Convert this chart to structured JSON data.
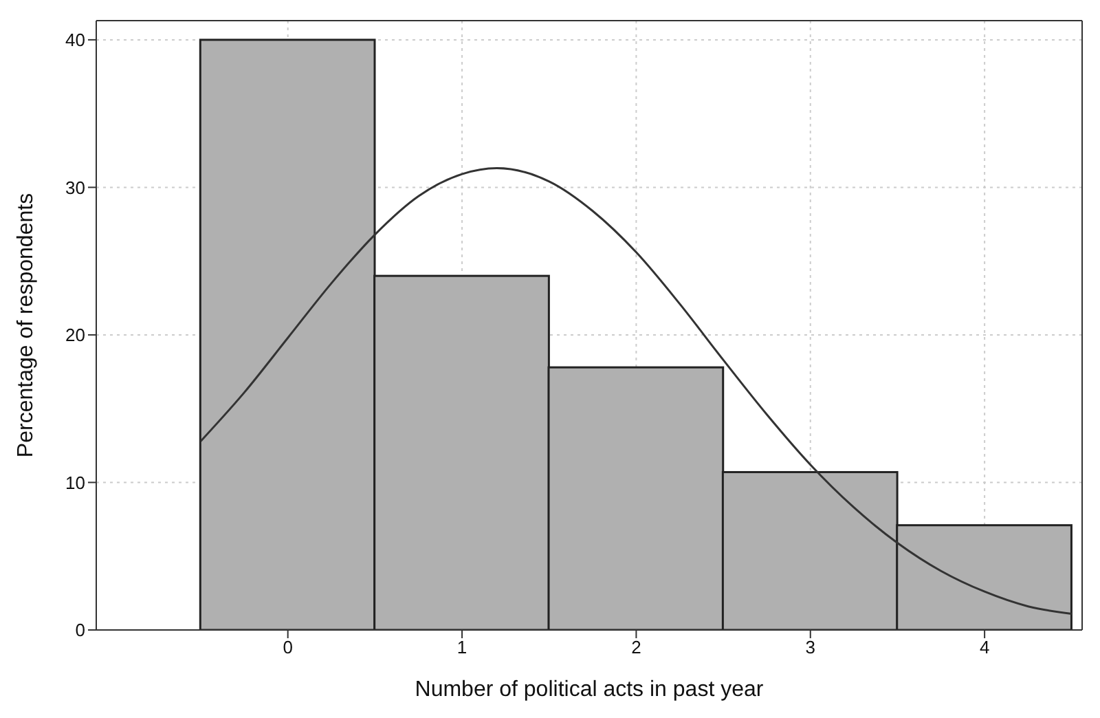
{
  "chart_data": {
    "type": "histogram",
    "xlabel": "Number of political acts in past year",
    "ylabel": "Percentage of respondents",
    "bins": [
      -0.5,
      0.5,
      1.5,
      2.5,
      3.5,
      4.5
    ],
    "values": [
      40,
      24,
      17.8,
      10.7,
      7.1
    ],
    "color": "#b0b0b0",
    "series": [
      {
        "type": "line",
        "color": "#333333",
        "x": [
          -0.5,
          -0.25,
          0,
          0.25,
          0.5,
          0.75,
          1,
          1.2,
          1.5,
          1.75,
          2,
          2.25,
          2.5,
          2.75,
          3,
          3.25,
          3.5,
          3.75,
          4,
          4.25,
          4.5
        ],
        "values": [
          12.8,
          16.1,
          19.8,
          23.5,
          26.8,
          29.4,
          30.9,
          31.3,
          30.4,
          28.4,
          25.6,
          22.1,
          18.3,
          14.6,
          11.2,
          8.3,
          5.9,
          4.0,
          2.6,
          1.6,
          1.1
        ]
      }
    ],
    "xlim": [
      -1.1,
      4.56
    ],
    "xticks": [
      0,
      1,
      2,
      3,
      4
    ],
    "ylim": [
      0,
      41.3
    ],
    "yticks": [
      0,
      10,
      20,
      30,
      40
    ],
    "grid": true,
    "marker": "none",
    "line_style": "solid"
  }
}
